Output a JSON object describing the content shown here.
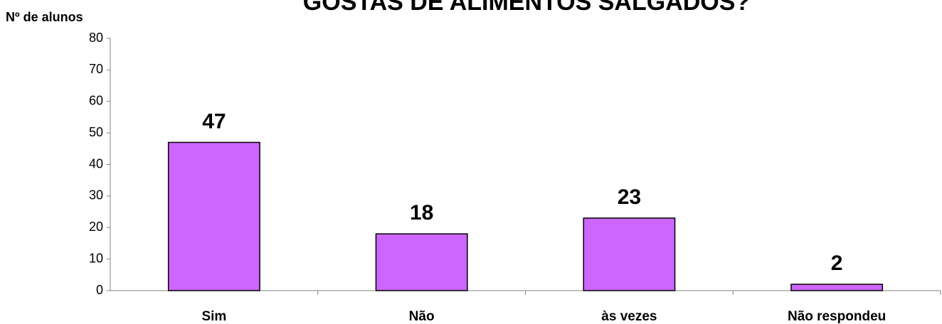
{
  "chart_data": {
    "type": "bar",
    "title": "GOSTAS DE ALIMENTOS SALGADOS?",
    "y_label": "Nº de alunos",
    "categories": [
      "Sim",
      "Não",
      "às vezes",
      "Não respondeu"
    ],
    "values": [
      47,
      18,
      23,
      2
    ],
    "color": "#cc66ff",
    "ylim": [
      0,
      80
    ],
    "yticks": [
      0,
      10,
      20,
      30,
      40,
      50,
      60,
      70,
      80
    ],
    "grid": false
  }
}
